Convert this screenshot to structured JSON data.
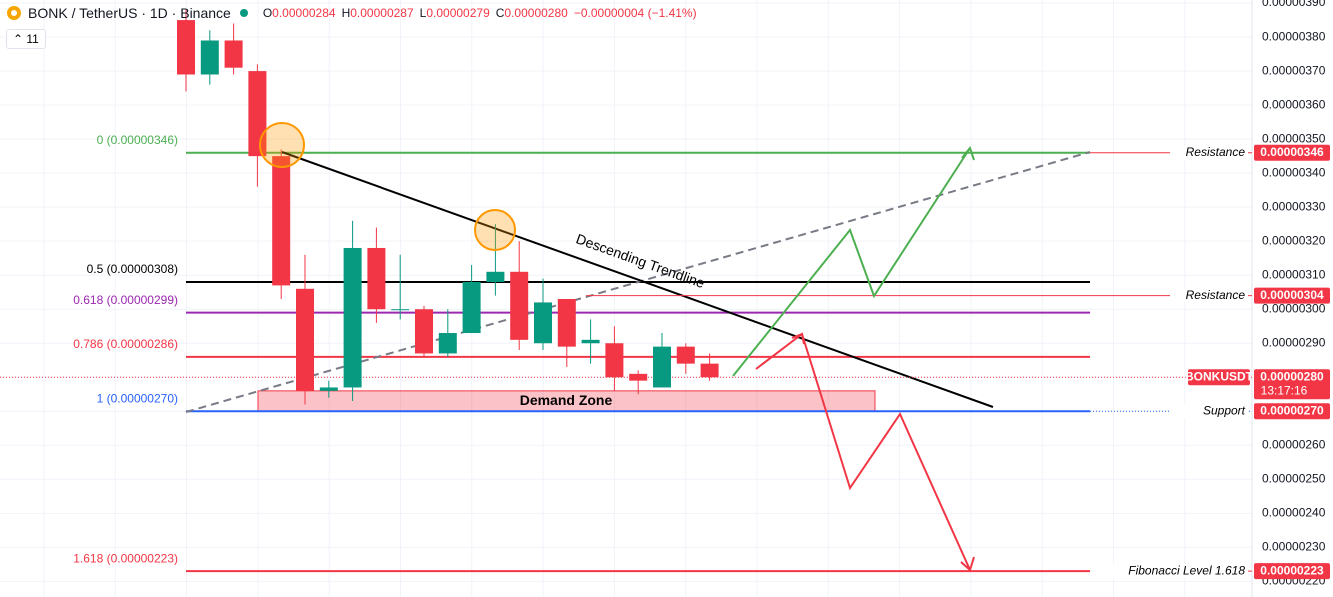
{
  "header": {
    "symbol": "BONK / TetherUS · 1D · Binance",
    "ohlc": [
      {
        "key": "O",
        "label": "0.00000284"
      },
      {
        "key": "H",
        "label": "0.00000287"
      },
      {
        "key": "L",
        "label": "0.00000279"
      },
      {
        "key": "C",
        "label": "0.00000280"
      }
    ],
    "change": "−0.00000004 (−1.41%)",
    "indicators": "11"
  },
  "chart_data": {
    "type": "candlestick",
    "up_color": "#089981",
    "down_color": "#f23645",
    "open": [
      3.85e-06,
      3.69e-06,
      3.79e-06,
      3.7e-06,
      3.45e-06,
      3.06e-06,
      2.76e-06,
      2.77e-06,
      3.18e-06,
      3e-06,
      3e-06,
      2.87e-06,
      2.93e-06,
      3.08e-06,
      3.11e-06,
      2.9e-06,
      3.03e-06,
      2.9e-06,
      2.9e-06,
      2.81e-06,
      2.77e-06,
      2.89e-06,
      2.84e-06
    ],
    "high": [
      3.88e-06,
      3.82e-06,
      3.84e-06,
      3.72e-06,
      3.47e-06,
      3.16e-06,
      2.79e-06,
      3.26e-06,
      3.24e-06,
      3.16e-06,
      3.01e-06,
      3e-06,
      3.13e-06,
      3.25e-06,
      3.2e-06,
      3.09e-06,
      3.03e-06,
      2.97e-06,
      2.95e-06,
      2.82e-06,
      2.93e-06,
      2.9e-06,
      2.87e-06
    ],
    "low": [
      3.64e-06,
      3.66e-06,
      3.69e-06,
      3.36e-06,
      3.03e-06,
      2.72e-06,
      2.74e-06,
      2.73e-06,
      2.96e-06,
      2.97e-06,
      2.86e-06,
      2.86e-06,
      2.93e-06,
      3.04e-06,
      2.88e-06,
      2.88e-06,
      2.83e-06,
      2.84e-06,
      2.76e-06,
      2.75e-06,
      2.77e-06,
      2.81e-06,
      2.79e-06
    ],
    "close": [
      3.69e-06,
      3.79e-06,
      3.71e-06,
      3.45e-06,
      3.07e-06,
      2.76e-06,
      2.77e-06,
      3.18e-06,
      3e-06,
      3e-06,
      2.87e-06,
      2.93e-06,
      3.08e-06,
      3.11e-06,
      2.91e-06,
      3.02e-06,
      2.89e-06,
      2.91e-06,
      2.8e-06,
      2.79e-06,
      2.89e-06,
      2.84e-06,
      2.8e-06
    ],
    "ylim": [
      2.154e-06,
      3.909e-06
    ],
    "yticks": [
      {
        "value": 2.2e-06,
        "label": "0.00000220"
      },
      {
        "value": 2.3e-06,
        "label": "0.00000230"
      },
      {
        "value": 2.4e-06,
        "label": "0.00000240"
      },
      {
        "value": 2.5e-06,
        "label": "0.00000250"
      },
      {
        "value": 2.6e-06,
        "label": "0.00000260"
      },
      {
        "value": 2.7e-06,
        "label": "0.00000270"
      },
      {
        "value": 2.8e-06,
        "label": "0.00000280"
      },
      {
        "value": 2.9e-06,
        "label": "0.00000290"
      },
      {
        "value": 3e-06,
        "label": "0.00000300"
      },
      {
        "value": 3.1e-06,
        "label": "0.00000310"
      },
      {
        "value": 3.2e-06,
        "label": "0.00000320"
      },
      {
        "value": 3.3e-06,
        "label": "0.00000330"
      },
      {
        "value": 3.4e-06,
        "label": "0.00000340"
      },
      {
        "value": 3.5e-06,
        "label": "0.00000350"
      },
      {
        "value": 3.6e-06,
        "label": "0.00000360"
      },
      {
        "value": 3.7e-06,
        "label": "0.00000370"
      },
      {
        "value": 3.8e-06,
        "label": "0.00000380"
      },
      {
        "value": 3.9e-06,
        "label": "0.00000390"
      }
    ],
    "fib_levels": [
      {
        "label": "0 (0.00000346)",
        "value": 3.46e-06,
        "color": "#4caf50"
      },
      {
        "label": "0.5 (0.00000308)",
        "value": 3.08e-06,
        "color": "#000000"
      },
      {
        "label": "0.618 (0.00000299)",
        "value": 2.99e-06,
        "color": "#9c27b0"
      },
      {
        "label": "0.786 (0.00000286)",
        "value": 2.86e-06,
        "color": "#f23645"
      },
      {
        "label": "1 (0.00000270)",
        "value": 2.7e-06,
        "color": "#2962ff"
      },
      {
        "label": "1.618 (0.00000223)",
        "value": 2.23e-06,
        "color": "#f23645"
      }
    ],
    "price_tags": [
      {
        "name": "Resistance",
        "value": 3.46e-06,
        "label": "0.00000346"
      },
      {
        "name": "Resistance",
        "value": 3.04e-06,
        "label": "0.00000304"
      },
      {
        "name": "BONKUSDT",
        "value": 2.8e-06,
        "label": "0.00000280",
        "countdown": "13:17:16"
      },
      {
        "name": "Support",
        "value": 2.7e-06,
        "label": "0.00000270"
      },
      {
        "name": "Fibonacci Level 1.618",
        "value": 2.23e-06,
        "label": "0.00000223"
      }
    ],
    "demand_zone": {
      "label": "Demand Zone",
      "range": [
        2.7e-06,
        2.76e-06
      ]
    },
    "trendline_label": "Descending Trendline"
  }
}
